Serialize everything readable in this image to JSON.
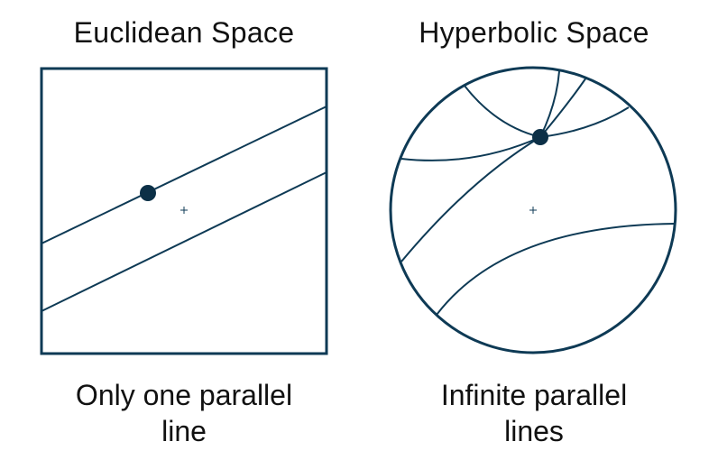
{
  "euclidean": {
    "title": "Euclidean Space",
    "caption_line1": "Only one parallel",
    "caption_line2": "line"
  },
  "hyperbolic": {
    "title": "Hyperbolic Space",
    "caption_line1": "Infinite parallel",
    "caption_line2": "lines"
  },
  "colors": {
    "stroke": "#0e3a55",
    "point": "#0c3047",
    "text": "#111111"
  }
}
